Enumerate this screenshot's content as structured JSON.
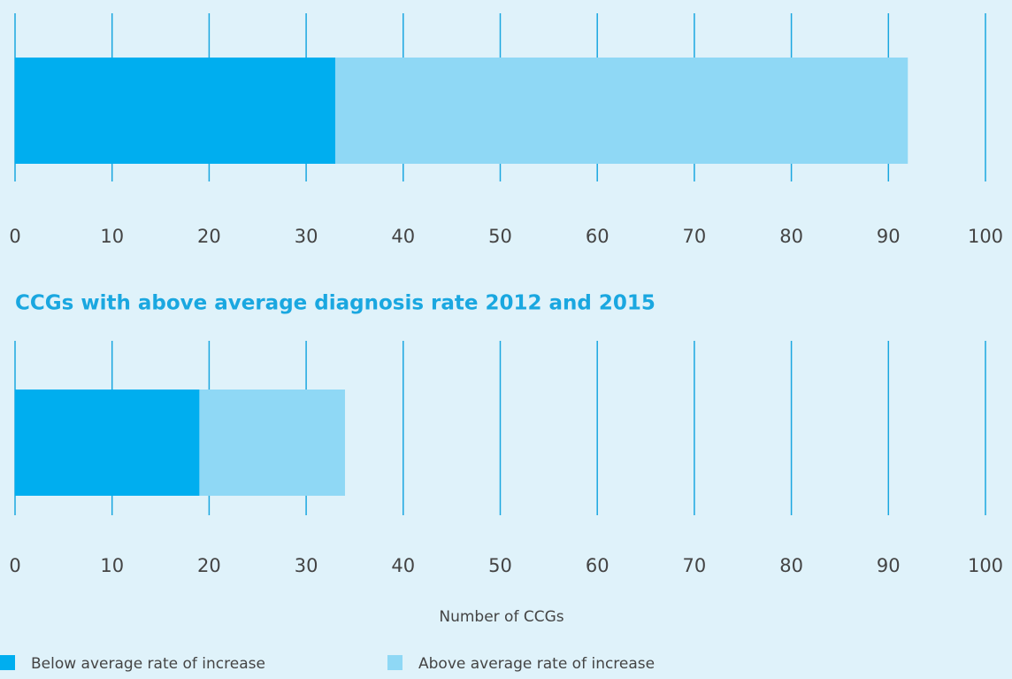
{
  "chart_data": [
    {
      "type": "bar",
      "orientation": "horizontal",
      "stacked": true,
      "categories": [
        null
      ],
      "series": [
        {
          "color": "#00aeef",
          "values": [
            33
          ]
        },
        {
          "color": "#8fd8f5",
          "values": [
            59
          ]
        }
      ],
      "xlim": [
        0,
        100
      ],
      "xticks": [
        0,
        10,
        20,
        30,
        40,
        50,
        60,
        70,
        80,
        90,
        100
      ],
      "grid": true
    },
    {
      "type": "bar",
      "orientation": "horizontal",
      "stacked": true,
      "title": "CCGs with above average diagnosis rate 2012 and 2015",
      "xlabel": "Number of CCGs",
      "categories": [
        null
      ],
      "series": [
        {
          "name": "Below average rate of increase",
          "color": "#00aeef",
          "values": [
            19
          ]
        },
        {
          "name": "Above average rate of increase",
          "color": "#8fd8f5",
          "values": [
            15
          ]
        }
      ],
      "xlim": [
        0,
        100
      ],
      "xticks": [
        0,
        10,
        20,
        30,
        40,
        50,
        60,
        70,
        80,
        90,
        100
      ],
      "grid": true
    }
  ]
}
